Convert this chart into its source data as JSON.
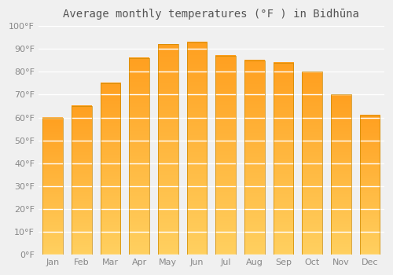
{
  "title": "Average monthly temperatures (°F ) in Bidhūna",
  "months": [
    "Jan",
    "Feb",
    "Mar",
    "Apr",
    "May",
    "Jun",
    "Jul",
    "Aug",
    "Sep",
    "Oct",
    "Nov",
    "Dec"
  ],
  "values": [
    60,
    65,
    75,
    86,
    92,
    93,
    87,
    85,
    84,
    80,
    70,
    61
  ],
  "bar_color_bottom": "#FFD060",
  "bar_color_top": "#FFA020",
  "ylim": [
    0,
    100
  ],
  "yticks": [
    0,
    10,
    20,
    30,
    40,
    50,
    60,
    70,
    80,
    90,
    100
  ],
  "ytick_labels": [
    "0°F",
    "10°F",
    "20°F",
    "30°F",
    "40°F",
    "50°F",
    "60°F",
    "70°F",
    "80°F",
    "90°F",
    "100°F"
  ],
  "background_color": "#F0F0F0",
  "plot_bg_color": "#F0F0F0",
  "grid_color": "#FFFFFF",
  "title_fontsize": 10,
  "tick_fontsize": 8,
  "bar_edge_color": "#CC8800"
}
